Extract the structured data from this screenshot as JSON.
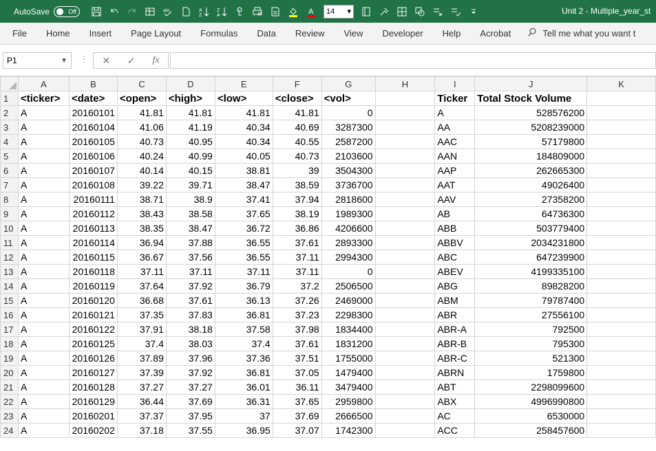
{
  "titlebar": {
    "autosave_label": "AutoSave",
    "autosave_state": "Off",
    "font_size": "14",
    "document_title": "Unit 2 - Multiple_year_st"
  },
  "ribbon": {
    "tabs": [
      "File",
      "Home",
      "Insert",
      "Page Layout",
      "Formulas",
      "Data",
      "Review",
      "View",
      "Developer",
      "Help",
      "Acrobat"
    ],
    "tell_me": "Tell me what you want t"
  },
  "formula_bar": {
    "name_box": "P1",
    "fx_label": "fx",
    "value": ""
  },
  "columns": [
    "A",
    "B",
    "C",
    "D",
    "E",
    "F",
    "G",
    "H",
    "I",
    "J",
    "K"
  ],
  "headers": [
    "<ticker>",
    "<date>",
    "<open>",
    "<high>",
    "<low>",
    "<close>",
    "<vol>",
    "",
    "Ticker",
    "Total Stock Volume"
  ],
  "rows": [
    {
      "n": "2",
      "c": [
        "A",
        "20160101",
        "41.81",
        "41.81",
        "41.81",
        "41.81",
        "0",
        "",
        "A",
        "528576200"
      ]
    },
    {
      "n": "3",
      "c": [
        "A",
        "20160104",
        "41.06",
        "41.19",
        "40.34",
        "40.69",
        "3287300",
        "",
        "AA",
        "5208239000"
      ]
    },
    {
      "n": "4",
      "c": [
        "A",
        "20160105",
        "40.73",
        "40.95",
        "40.34",
        "40.55",
        "2587200",
        "",
        "AAC",
        "57179800"
      ]
    },
    {
      "n": "5",
      "c": [
        "A",
        "20160106",
        "40.24",
        "40.99",
        "40.05",
        "40.73",
        "2103600",
        "",
        "AAN",
        "184809000"
      ]
    },
    {
      "n": "6",
      "c": [
        "A",
        "20160107",
        "40.14",
        "40.15",
        "38.81",
        "39",
        "3504300",
        "",
        "AAP",
        "262665300"
      ]
    },
    {
      "n": "7",
      "c": [
        "A",
        "20160108",
        "39.22",
        "39.71",
        "38.47",
        "38.59",
        "3736700",
        "",
        "AAT",
        "49026400"
      ]
    },
    {
      "n": "8",
      "c": [
        "A",
        "20160111",
        "38.71",
        "38.9",
        "37.41",
        "37.94",
        "2818600",
        "",
        "AAV",
        "27358200"
      ]
    },
    {
      "n": "9",
      "c": [
        "A",
        "20160112",
        "38.43",
        "38.58",
        "37.65",
        "38.19",
        "1989300",
        "",
        "AB",
        "64736300"
      ]
    },
    {
      "n": "10",
      "c": [
        "A",
        "20160113",
        "38.35",
        "38.47",
        "36.72",
        "36.86",
        "4206600",
        "",
        "ABB",
        "503779400"
      ]
    },
    {
      "n": "11",
      "c": [
        "A",
        "20160114",
        "36.94",
        "37.88",
        "36.55",
        "37.61",
        "2893300",
        "",
        "ABBV",
        "2034231800"
      ]
    },
    {
      "n": "12",
      "c": [
        "A",
        "20160115",
        "36.67",
        "37.56",
        "36.55",
        "37.11",
        "2994300",
        "",
        "ABC",
        "647239900"
      ]
    },
    {
      "n": "13",
      "c": [
        "A",
        "20160118",
        "37.11",
        "37.11",
        "37.11",
        "37.11",
        "0",
        "",
        "ABEV",
        "4199335100"
      ]
    },
    {
      "n": "14",
      "c": [
        "A",
        "20160119",
        "37.64",
        "37.92",
        "36.79",
        "37.2",
        "2506500",
        "",
        "ABG",
        "89828200"
      ]
    },
    {
      "n": "15",
      "c": [
        "A",
        "20160120",
        "36.68",
        "37.61",
        "36.13",
        "37.26",
        "2469000",
        "",
        "ABM",
        "79787400"
      ]
    },
    {
      "n": "16",
      "c": [
        "A",
        "20160121",
        "37.35",
        "37.83",
        "36.81",
        "37.23",
        "2298300",
        "",
        "ABR",
        "27556100"
      ]
    },
    {
      "n": "17",
      "c": [
        "A",
        "20160122",
        "37.91",
        "38.18",
        "37.58",
        "37.98",
        "1834400",
        "",
        "ABR-A",
        "792500"
      ]
    },
    {
      "n": "18",
      "c": [
        "A",
        "20160125",
        "37.4",
        "38.03",
        "37.4",
        "37.61",
        "1831200",
        "",
        "ABR-B",
        "795300"
      ]
    },
    {
      "n": "19",
      "c": [
        "A",
        "20160126",
        "37.89",
        "37.96",
        "37.36",
        "37.51",
        "1755000",
        "",
        "ABR-C",
        "521300"
      ]
    },
    {
      "n": "20",
      "c": [
        "A",
        "20160127",
        "37.39",
        "37.92",
        "36.81",
        "37.05",
        "1479400",
        "",
        "ABRN",
        "1759800"
      ]
    },
    {
      "n": "21",
      "c": [
        "A",
        "20160128",
        "37.27",
        "37.27",
        "36.01",
        "36.11",
        "3479400",
        "",
        "ABT",
        "2298099600"
      ]
    },
    {
      "n": "22",
      "c": [
        "A",
        "20160129",
        "36.44",
        "37.69",
        "36.31",
        "37.65",
        "2959800",
        "",
        "ABX",
        "4996990800"
      ]
    },
    {
      "n": "23",
      "c": [
        "A",
        "20160201",
        "37.37",
        "37.95",
        "37",
        "37.69",
        "2666500",
        "",
        "AC",
        "6530000"
      ]
    },
    {
      "n": "24",
      "c": [
        "A",
        "20160202",
        "37.18",
        "37.55",
        "36.95",
        "37.07",
        "1742300",
        "",
        "ACC",
        "258457600"
      ]
    }
  ]
}
